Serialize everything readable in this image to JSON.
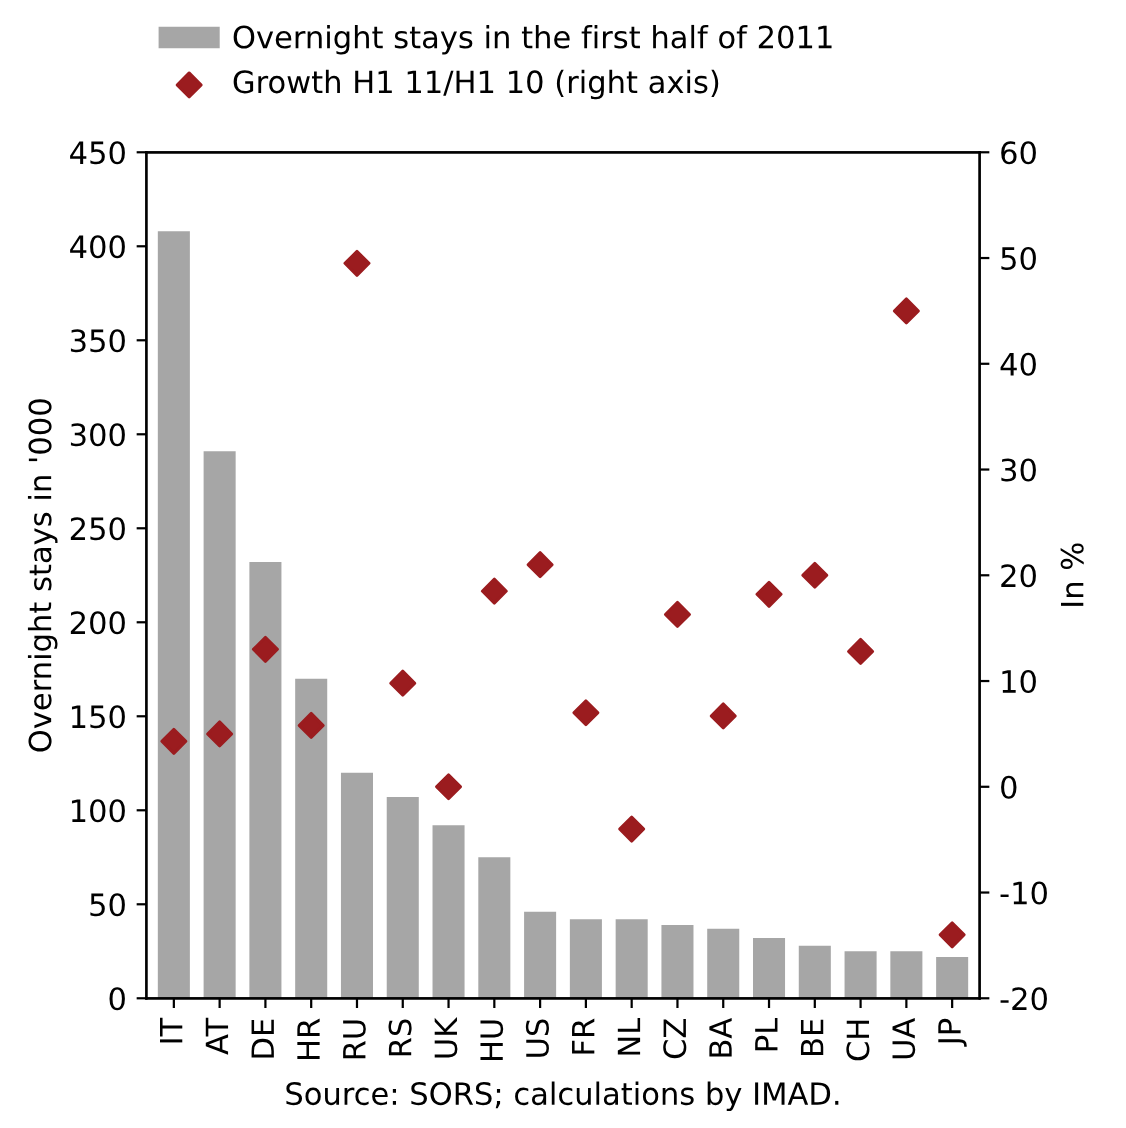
{
  "chart_data": {
    "type": "bar",
    "categories": [
      "IT",
      "AT",
      "DE",
      "HR",
      "RU",
      "RS",
      "UK",
      "HU",
      "US",
      "FR",
      "NL",
      "CZ",
      "BA",
      "PL",
      "BE",
      "CH",
      "UA",
      "JP"
    ],
    "series": [
      {
        "name": "Overnight stays in the first half of 2011",
        "color": "#a6a6a6",
        "values": [
          408,
          291,
          232,
          170,
          120,
          107,
          92,
          75,
          46,
          42,
          42,
          39,
          37,
          32,
          28,
          25,
          25,
          22
        ]
      },
      {
        "name": "Growth H1 11/H1 10 (right axis)",
        "type": "scatter",
        "axis": "y2",
        "marker": "diamond",
        "color": "#9b1c1f",
        "values": [
          4.3,
          5,
          13,
          5.8,
          49.5,
          9.8,
          0,
          18.5,
          21,
          7,
          -4,
          16.3,
          6.7,
          18.2,
          20,
          12.8,
          45,
          -14
        ]
      }
    ],
    "ylabel": "Overnight stays in '000",
    "y2label": "In %",
    "ylim": [
      0,
      450
    ],
    "yticks": [
      0,
      50,
      100,
      150,
      200,
      250,
      300,
      350,
      400,
      450
    ],
    "y2lim": [
      -20,
      60
    ],
    "y2ticks": [
      -20,
      -10,
      0,
      10,
      20,
      30,
      40,
      50,
      60
    ],
    "legend": "top",
    "grid": false,
    "annotations": [
      "Source: SORS; calculations by IMAD."
    ]
  }
}
